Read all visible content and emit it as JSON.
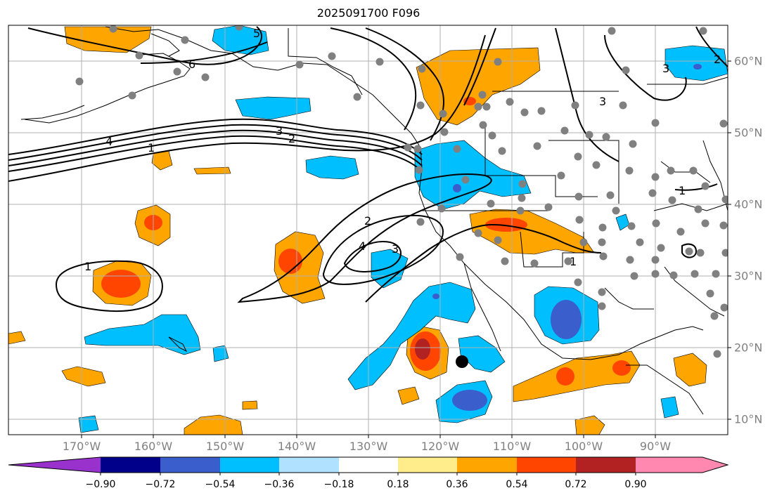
{
  "title": "2025091700 F096",
  "lon_labels": [
    "170°W",
    "160°W",
    "150°W",
    "140°W",
    "130°W",
    "120°W",
    "110°W",
    "100°W",
    "90°W"
  ],
  "lat_labels": [
    "60°N",
    "50°N",
    "40°N",
    "30°N",
    "20°N",
    "10°N"
  ],
  "colorbar": {
    "ticks": [
      "−0.90",
      "−0.72",
      "−0.54",
      "−0.36",
      "−0.18",
      "0.18",
      "0.36",
      "0.54",
      "0.72",
      "0.90"
    ],
    "colors": [
      "#9932cc",
      "#00008b",
      "#3a5fcd",
      "#00bfff",
      "#b0e2ff",
      "#ffffff",
      "#ffec8b",
      "#ffa500",
      "#ff4500",
      "#b22222",
      "#ff88b0"
    ]
  },
  "contour_labels": [
    "6",
    "5",
    "4",
    "3",
    "2",
    "1",
    "2",
    "3",
    "4",
    "1",
    "1",
    "1",
    "3",
    "2",
    "3"
  ],
  "colors": {
    "grid": "#b0b0b0",
    "coast": "#000000",
    "station": "#808080",
    "contour": "#000000"
  }
}
